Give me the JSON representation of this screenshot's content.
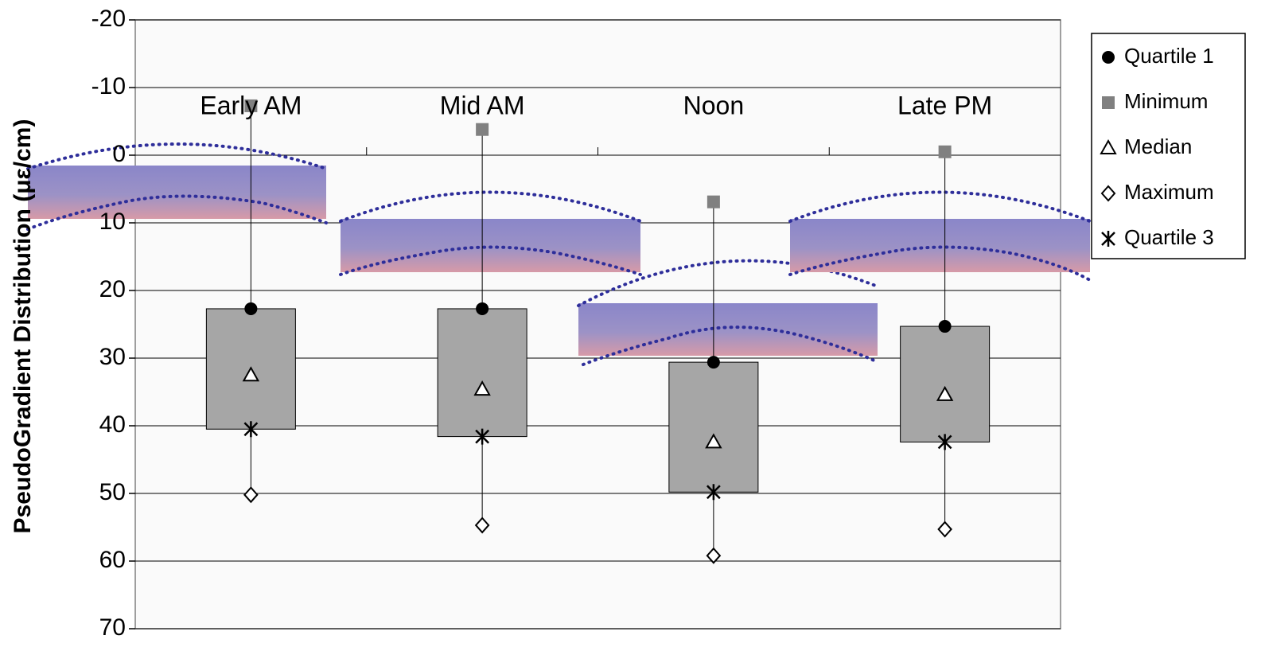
{
  "chart_data": {
    "type": "box",
    "y_label": "PseudoGradient Distribution (με/cm)",
    "categories": [
      "Early AM",
      "Mid AM",
      "Noon",
      "Late PM"
    ],
    "series": [
      {
        "name": "Quartile 1",
        "color": "#000000",
        "marker": "circle",
        "values": [
          22.7,
          22.7,
          30.6,
          25.3
        ]
      },
      {
        "name": "Minimum",
        "color": "#808080",
        "marker": "square",
        "values": [
          -7.3,
          -3.8,
          6.9,
          -0.5
        ]
      },
      {
        "name": "Median",
        "color": "#000000",
        "marker": "triangle",
        "values": [
          32.5,
          34.6,
          42.4,
          35.4
        ]
      },
      {
        "name": "Maximum",
        "color": "#000000",
        "marker": "diamond",
        "values": [
          50.2,
          54.7,
          59.2,
          55.3
        ]
      },
      {
        "name": "Quartile 3",
        "color": "#000000",
        "marker": "asterisk",
        "values": [
          40.5,
          41.6,
          49.8,
          42.4
        ]
      }
    ],
    "box_color": "#a6a6a6",
    "ylim": [
      -20,
      70
    ],
    "y_inverted": true,
    "yticks": [
      -20,
      -10,
      0,
      10,
      20,
      30,
      40,
      50,
      60,
      70
    ],
    "grid": true,
    "legend": "right"
  }
}
